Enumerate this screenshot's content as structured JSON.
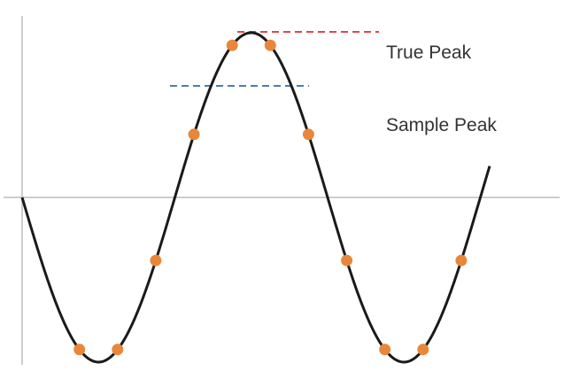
{
  "labels": {
    "true_peak": "True Peak",
    "sample_peak": "Sample Peak"
  },
  "colors": {
    "axis": "#cccccc",
    "waveform": "#1a1a1a",
    "sample_point": "#e8873a",
    "true_peak_line": "#e0474c",
    "sample_peak_line": "#4a7db5",
    "label_text": "#333333"
  },
  "waveform": {
    "samples_per_cycle": 8,
    "sample_phase_degrees": 22.5,
    "true_peak_amplitude": 1.0,
    "sample_peak_amplitude": 0.924
  }
}
